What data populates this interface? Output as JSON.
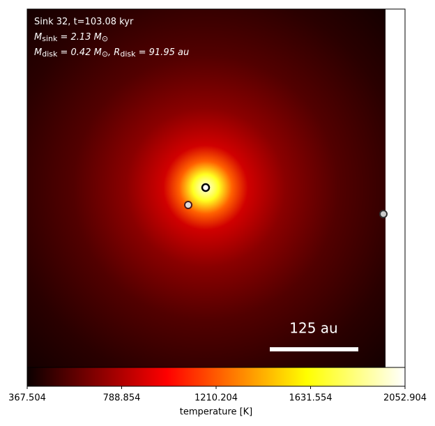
{
  "chart_data": {
    "type": "image",
    "annotation_lines": [
      [
        "Sink 32, t=103.08 kyr"
      ],
      [
        "M",
        "sink",
        " = 2.13 M",
        "⊙"
      ],
      [
        "M",
        "disk",
        " = 0.42 M",
        "⊙",
        ", R",
        "disk",
        " = 91.95 au"
      ]
    ],
    "scale_bar_label": "125 au",
    "colorbar": {
      "label": "temperature [K]",
      "lim": [
        367.504,
        2052.904
      ],
      "ticks": [
        367.504,
        788.854,
        1210.204,
        1631.554,
        2052.904
      ]
    }
  }
}
